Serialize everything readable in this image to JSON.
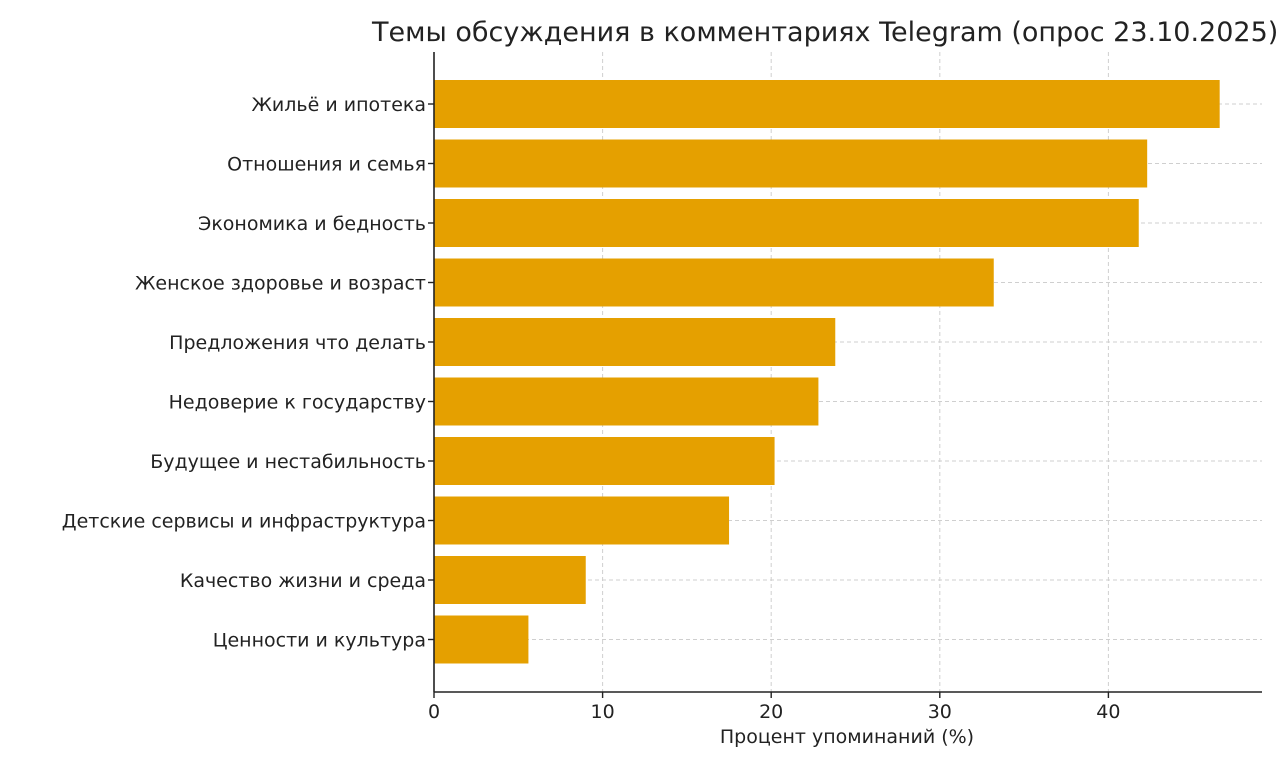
{
  "chart_data": {
    "type": "bar",
    "orientation": "horizontal",
    "title": "Темы обсуждения в комментариях Telegram (опрос 23.10.2025)",
    "xlabel": "Процент упоминаний (%)",
    "ylabel": "",
    "xlim": [
      0,
      49
    ],
    "xticks": [
      0,
      10,
      20,
      30,
      40
    ],
    "grid": true,
    "bar_color": "#E5A000",
    "categories": [
      "Жильё и ипотека",
      "Отношения и семья",
      "Экономика и бедность",
      "Женское здоровье и возраст",
      "Предложения что делать",
      "Недоверие к государству",
      "Будущее и нестабильность",
      "Детские сервисы и инфраструктура",
      "Качество жизни и среда",
      "Ценности и культура"
    ],
    "values": [
      46.6,
      42.3,
      41.8,
      33.2,
      23.8,
      22.8,
      20.2,
      17.5,
      9.0,
      5.6
    ]
  }
}
